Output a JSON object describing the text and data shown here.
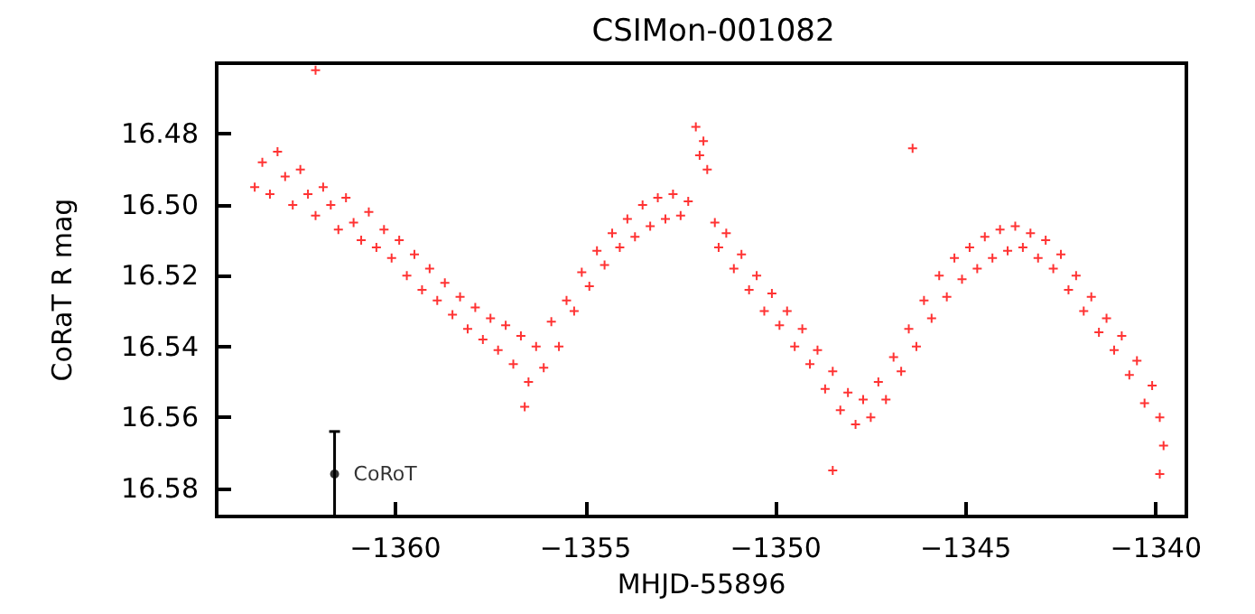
{
  "chart_data": {
    "type": "scatter",
    "title": "CSIMon-001082",
    "xlabel": "MHJD-55896",
    "ylabel": "CoRaT R mag",
    "xlim": [
      -1364.7,
      -1339.2
    ],
    "xticks": [
      -1360,
      -1355,
      -1350,
      -1345,
      -1340
    ],
    "ylim": [
      16.588,
      16.46
    ],
    "yticks": [
      16.48,
      {
        "value": 16.5,
        "label": "16.50"
      },
      16.52,
      16.54,
      16.56,
      16.58
    ],
    "grid": false,
    "legend": false,
    "series": [
      {
        "color": "#ff0000",
        "marker": "cross",
        "x": [
          -1363.7,
          -1363.5,
          -1363.3,
          -1363.1,
          -1362.9,
          -1362.7,
          -1362.5,
          -1362.3,
          -1362.1,
          -1361.9,
          -1361.7,
          -1361.5,
          -1361.3,
          -1361.1,
          -1360.9,
          -1360.7,
          -1360.5,
          -1360.3,
          -1360.1,
          -1359.9,
          -1359.7,
          -1359.5,
          -1359.3,
          -1359.1,
          -1358.9,
          -1358.7,
          -1358.5,
          -1358.3,
          -1358.1,
          -1357.9,
          -1357.7,
          -1357.5,
          -1357.3,
          -1357.1,
          -1356.9,
          -1356.7,
          -1356.5,
          -1356.3,
          -1356.1,
          -1355.9,
          -1355.7,
          -1355.5,
          -1355.3,
          -1355.1,
          -1354.9,
          -1354.7,
          -1354.5,
          -1354.3,
          -1354.1,
          -1353.9,
          -1353.7,
          -1353.5,
          -1353.3,
          -1353.1,
          -1352.9,
          -1352.7,
          -1352.5,
          -1352.3,
          -1352.1,
          -1352.0,
          -1351.9,
          -1351.8,
          -1351.6,
          -1351.5,
          -1351.3,
          -1351.1,
          -1350.9,
          -1350.7,
          -1350.5,
          -1350.3,
          -1350.1,
          -1349.9,
          -1349.7,
          -1349.5,
          -1349.3,
          -1349.1,
          -1348.9,
          -1348.7,
          -1348.5,
          -1348.3,
          -1348.1,
          -1347.9,
          -1347.7,
          -1347.5,
          -1347.3,
          -1347.1,
          -1346.9,
          -1346.7,
          -1346.5,
          -1346.3,
          -1346.1,
          -1345.9,
          -1345.7,
          -1345.5,
          -1345.3,
          -1345.1,
          -1344.9,
          -1344.7,
          -1344.5,
          -1344.3,
          -1344.1,
          -1343.9,
          -1343.7,
          -1343.5,
          -1343.3,
          -1343.1,
          -1342.9,
          -1342.7,
          -1342.5,
          -1342.3,
          -1342.1,
          -1341.9,
          -1341.7,
          -1341.5,
          -1341.3,
          -1341.1,
          -1340.9,
          -1340.7,
          -1340.5,
          -1340.3,
          -1340.1,
          -1339.9,
          -1339.8,
          -1362.1,
          -1356.6,
          -1348.5,
          -1346.4,
          -1339.9
        ],
        "values": [
          16.495,
          16.488,
          16.497,
          16.485,
          16.492,
          16.5,
          16.49,
          16.497,
          16.503,
          16.495,
          16.5,
          16.507,
          16.498,
          16.505,
          16.51,
          16.502,
          16.512,
          16.507,
          16.515,
          16.51,
          16.52,
          16.514,
          16.524,
          16.518,
          16.527,
          16.522,
          16.531,
          16.526,
          16.535,
          16.529,
          16.538,
          16.532,
          16.541,
          16.534,
          16.545,
          16.537,
          16.55,
          16.54,
          16.546,
          16.533,
          16.54,
          16.527,
          16.53,
          16.519,
          16.523,
          16.513,
          16.517,
          16.508,
          16.512,
          16.504,
          16.509,
          16.5,
          16.506,
          16.498,
          16.504,
          16.497,
          16.503,
          16.499,
          16.478,
          16.486,
          16.482,
          16.49,
          16.505,
          16.512,
          16.508,
          16.518,
          16.514,
          16.524,
          16.52,
          16.53,
          16.525,
          16.534,
          16.53,
          16.54,
          16.535,
          16.545,
          16.541,
          16.552,
          16.547,
          16.558,
          16.553,
          16.562,
          16.555,
          16.56,
          16.55,
          16.555,
          16.543,
          16.547,
          16.535,
          16.54,
          16.527,
          16.532,
          16.52,
          16.526,
          16.515,
          16.521,
          16.512,
          16.518,
          16.509,
          16.515,
          16.507,
          16.513,
          16.506,
          16.512,
          16.508,
          16.515,
          16.51,
          16.518,
          16.514,
          16.524,
          16.52,
          16.53,
          16.526,
          16.536,
          16.532,
          16.541,
          16.537,
          16.548,
          16.544,
          16.556,
          16.551,
          16.56,
          16.568,
          16.462,
          16.557,
          16.575,
          16.484,
          16.576
        ]
      },
      {
        "name": "CoRoT",
        "color": "#000000",
        "marker": "circle",
        "x": [
          -1361.6
        ],
        "values": [
          16.576
        ],
        "errors": [
          0.012
        ]
      }
    ]
  }
}
